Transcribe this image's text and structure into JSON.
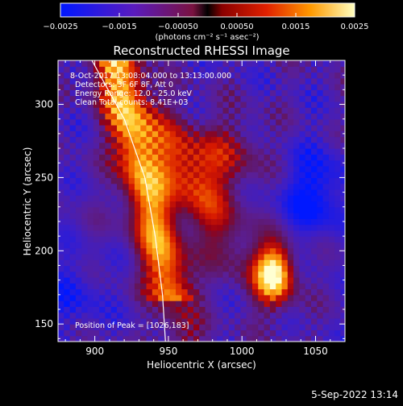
{
  "colorbar": {
    "tick_labels": [
      "−0.0025",
      "−0.0015",
      "−0.00050",
      "0.00050",
      "0.0015",
      "0.0025"
    ],
    "tick_values": [
      -0.0025,
      -0.0015,
      -0.0005,
      0.0005,
      0.0015,
      0.0025
    ],
    "range": [
      -0.0025,
      0.0025
    ],
    "unit_label": "(photons cm⁻² s⁻¹ asec⁻²)"
  },
  "chart_data": {
    "type": "heatmap",
    "title": "Reconstructed RHESSI Image",
    "xlabel": "Heliocentric X (arcsec)",
    "ylabel": "Heliocentric Y (arcsec)",
    "xlim": [
      875,
      1070
    ],
    "ylim": [
      138,
      330
    ],
    "x_ticks": [
      900,
      950,
      1000,
      1050
    ],
    "y_ticks": [
      150,
      200,
      250,
      300
    ],
    "x_tick_labels": [
      "900",
      "950",
      "1000",
      "1050"
    ],
    "y_tick_labels": [
      "150",
      "200",
      "250",
      "300"
    ],
    "colormap": "rhessi hot (blue-purple-red-orange-yellow-white)",
    "info_lines": [
      "8-Oct-2017 13:08:04.000 to 13:13:00.000",
      "Detectors: 3F 6F 8F, Att 0",
      "Energy Range: 12.0 - 25.0 keV",
      "Clean     Total counts: 8.41E+03"
    ],
    "peak_label": "Position of Peak = [1026,183]",
    "peak_position": [
      1026,
      183
    ],
    "limb_arc": [
      [
        898,
        330
      ],
      [
        920,
        290
      ],
      [
        934,
        250
      ],
      [
        941,
        210
      ],
      [
        946,
        170
      ],
      [
        948,
        138
      ]
    ]
  },
  "footer": {
    "date_label": "5-Sep-2022 13:14"
  }
}
